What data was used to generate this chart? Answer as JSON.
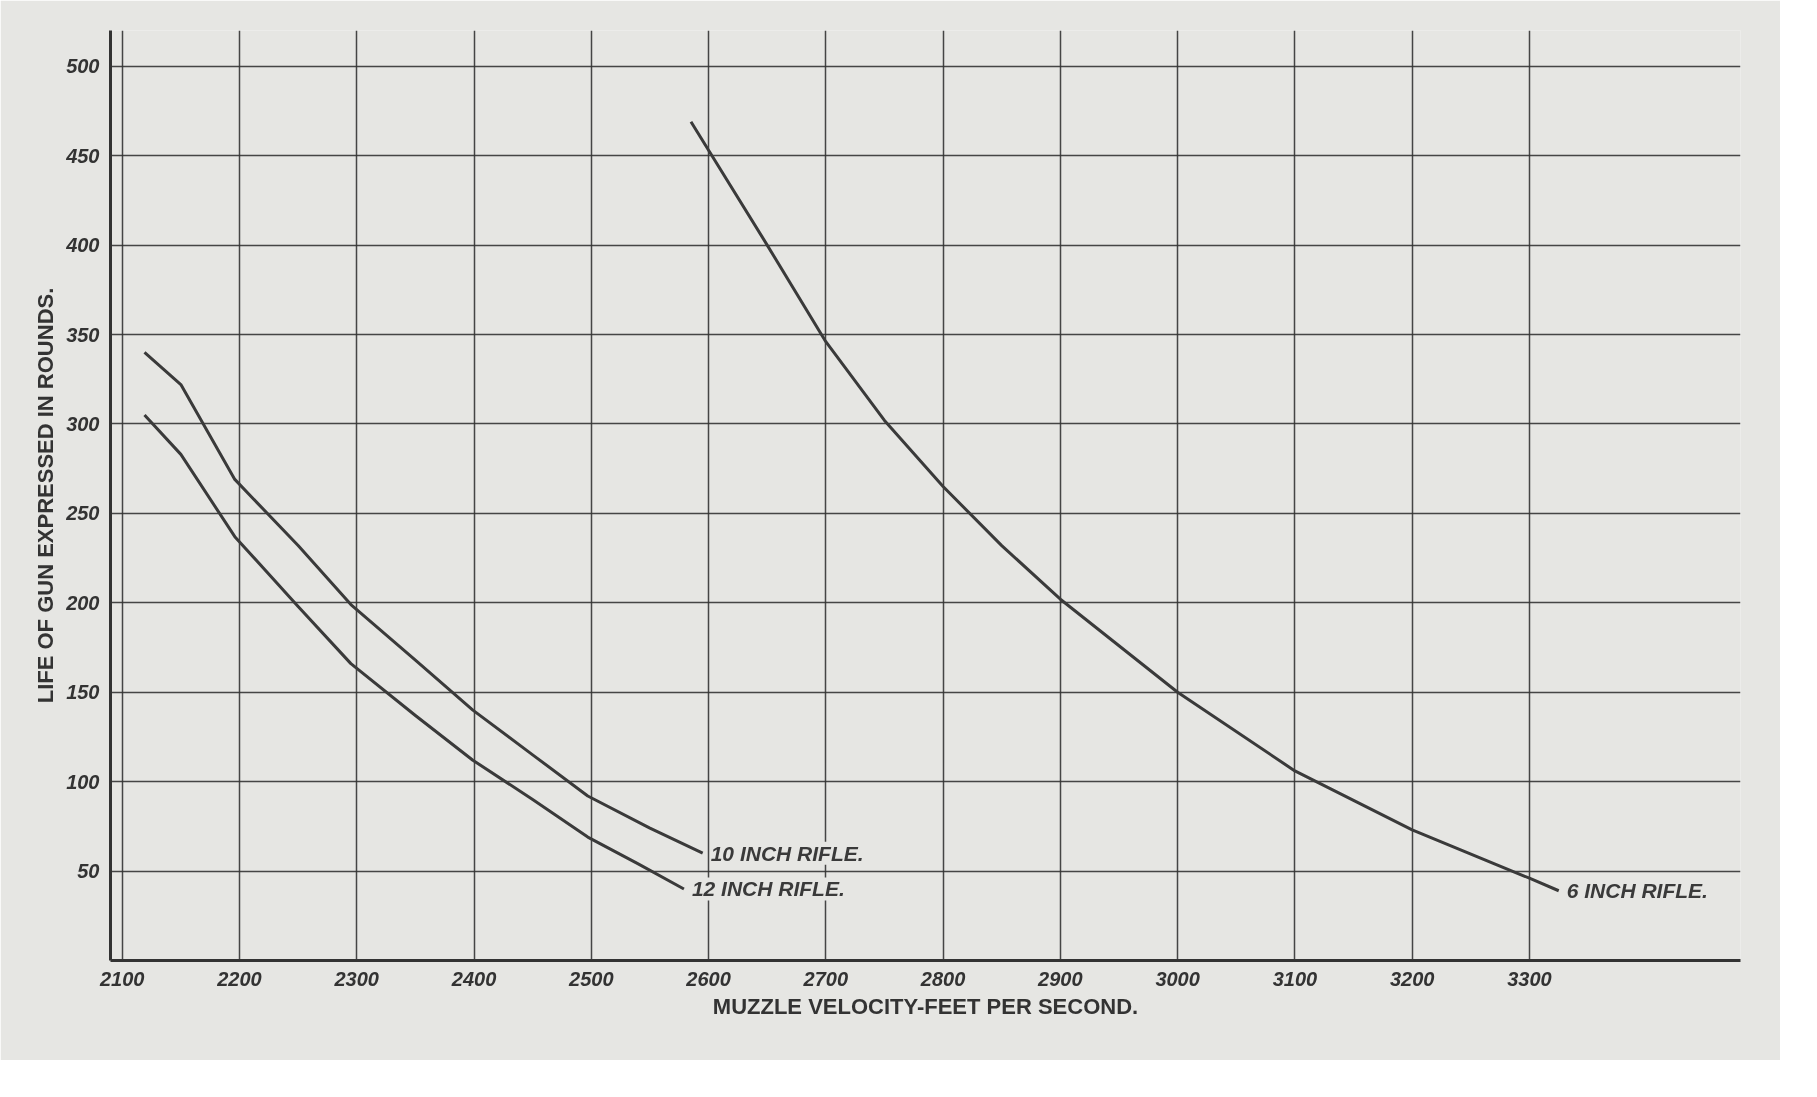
{
  "chart_data": {
    "type": "line",
    "xlabel": "MUZZLE VELOCITY-FEET PER SECOND.",
    "ylabel": "LIFE OF GUN EXPRESSED IN ROUNDS.",
    "xlim": [
      2090,
      3480
    ],
    "ylim": [
      0,
      520
    ],
    "xticks": [
      2100,
      2200,
      2300,
      2400,
      2500,
      2600,
      2700,
      2800,
      2900,
      3000,
      3100,
      3200,
      3300
    ],
    "yticks": [
      50,
      100,
      150,
      200,
      250,
      300,
      350,
      400,
      450,
      500
    ],
    "grid": true,
    "line_style": "solid",
    "marker": "none",
    "series": [
      {
        "name": "10 INCH RIFLE.",
        "color": "#3a3a3a",
        "x": [
          2119,
          2150,
          2196,
          2250,
          2295,
          2350,
          2399,
          2450,
          2497,
          2550,
          2595
        ],
        "values": [
          340,
          322,
          269,
          232,
          199,
          168,
          140,
          115,
          92,
          74,
          60
        ]
      },
      {
        "name": "12 INCH RIFLE.",
        "color": "#3a3a3a",
        "x": [
          2119,
          2150,
          2196,
          2250,
          2295,
          2350,
          2399,
          2450,
          2497,
          2540,
          2579
        ],
        "values": [
          305,
          283,
          237,
          198,
          166,
          137,
          112,
          90,
          69,
          54,
          40
        ]
      },
      {
        "name": "6 INCH RIFLE.",
        "color": "#3a3a3a",
        "x": [
          2585,
          2650,
          2700,
          2750,
          2800,
          2850,
          2900,
          3000,
          3100,
          3200,
          3300,
          3325
        ],
        "values": [
          469,
          400,
          346,
          302,
          265,
          232,
          202,
          150,
          106,
          73,
          46,
          39
        ]
      }
    ]
  }
}
